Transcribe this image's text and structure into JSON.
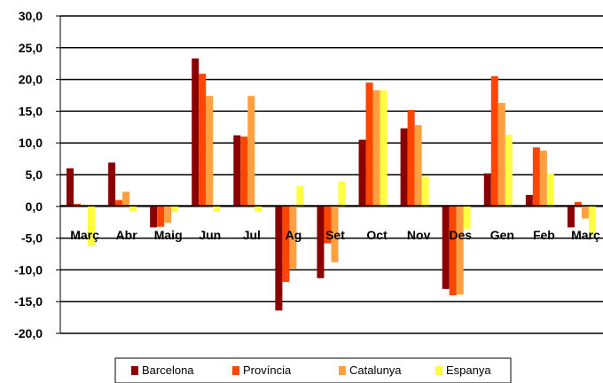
{
  "chart_data": {
    "type": "bar",
    "categories": [
      "Març",
      "Abr",
      "Maig",
      "Jun",
      "Jul",
      "Ag",
      "Set",
      "Oct",
      "Nov",
      "Des",
      "Gen",
      "Feb",
      "Març"
    ],
    "series": [
      {
        "name": "Barcelona",
        "color": "#8B0000",
        "values": [
          6.0,
          6.9,
          -3.3,
          23.3,
          11.2,
          -16.4,
          -11.3,
          10.5,
          12.3,
          -13.0,
          5.2,
          1.8,
          -3.3
        ]
      },
      {
        "name": "Província",
        "color": "#FF4500",
        "values": [
          0.4,
          1.0,
          -3.2,
          20.9,
          11.0,
          -11.9,
          -5.8,
          19.5,
          15.2,
          -14.0,
          20.5,
          9.3,
          0.7
        ]
      },
      {
        "name": "Catalunya",
        "color": "#FFA040",
        "values": [
          0.0,
          2.3,
          -2.6,
          17.4,
          17.4,
          -9.8,
          -8.8,
          18.3,
          12.8,
          -13.9,
          16.3,
          8.8,
          -1.9
        ]
      },
      {
        "name": "Espanya",
        "color": "#FFFF40",
        "values": [
          -6.2,
          -0.8,
          -0.9,
          -0.8,
          -0.8,
          3.2,
          3.9,
          18.3,
          4.7,
          -3.5,
          11.3,
          5.2,
          -4.5
        ]
      }
    ],
    "ylim": [
      -20,
      30
    ],
    "yticks": [
      "30,0",
      "25,0",
      "20,0",
      "15,0",
      "10,0",
      "5,0",
      "0,0",
      "-5,0",
      "-10,0",
      "-15,0",
      "-20,0"
    ],
    "ytick_values": [
      30,
      25,
      20,
      15,
      10,
      5,
      0,
      -5,
      -10,
      -15,
      -20
    ],
    "grid": true,
    "legend_position": "bottom"
  }
}
